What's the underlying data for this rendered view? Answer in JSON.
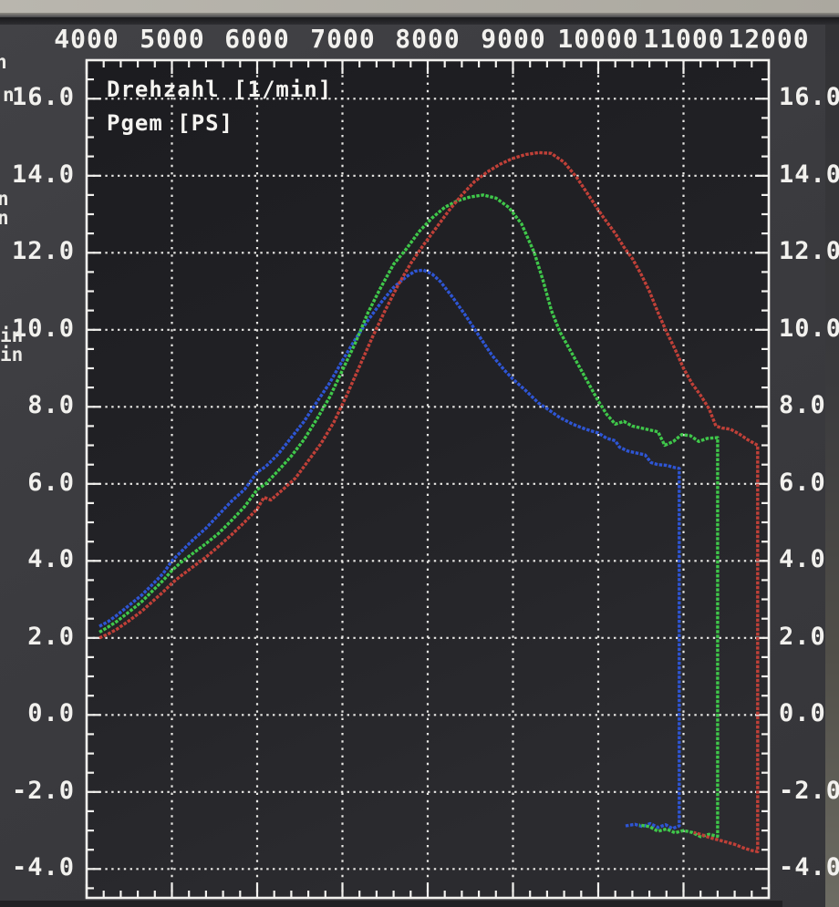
{
  "legend": {
    "line1": "Drehzahl [1/min]",
    "line2": "Pgem [PS]"
  },
  "edge_fragments": [
    "n",
    "n",
    "n",
    "n",
    "in",
    "in"
  ],
  "colors": {
    "screen_bg": "#3b3b3f",
    "plot_bg": "#222226",
    "axis": "#f2f1ee",
    "grid": "#e9e8e5",
    "text": "#f2f1ee",
    "bezel": "#b9b6ae",
    "run_red": "#c04038",
    "run_green": "#3fc74a",
    "run_blue": "#2e55d4"
  },
  "axes": {
    "x_minor_step": 200,
    "x_major_step": 1000,
    "y_minor_step": 0.5,
    "y_major_step": 2,
    "x_ticks": [
      {
        "label": "4000",
        "value": 4000
      },
      {
        "label": "5000",
        "value": 5000
      },
      {
        "label": "6000",
        "value": 6000
      },
      {
        "label": "7000",
        "value": 7000
      },
      {
        "label": "8000",
        "value": 8000
      },
      {
        "label": "9000",
        "value": 9000
      },
      {
        "label": "10000",
        "value": 10000
      },
      {
        "label": "11000",
        "value": 11000
      },
      {
        "label": "12000",
        "value": 12000
      }
    ],
    "y_ticks": [
      {
        "label": "16.0",
        "value": 16
      },
      {
        "label": "14.0",
        "value": 14
      },
      {
        "label": "12.0",
        "value": 12
      },
      {
        "label": "10.0",
        "value": 10
      },
      {
        "label": "8.0",
        "value": 8
      },
      {
        "label": "6.0",
        "value": 6
      },
      {
        "label": "4.0",
        "value": 4
      },
      {
        "label": "2.0",
        "value": 2
      },
      {
        "label": "0.0",
        "value": 0
      },
      {
        "label": "-2.0",
        "value": -2
      },
      {
        "label": "-4.0",
        "value": -4
      }
    ]
  },
  "chart_data": {
    "type": "line",
    "title": "",
    "xlabel": "Drehzahl [1/min]",
    "ylabel": "Pgem [PS]",
    "xlim": [
      4000,
      12000
    ],
    "ylim": [
      -4.75,
      17
    ],
    "grid": true,
    "legend_position": "top-left-inside",
    "series": [
      {
        "name": "run-blue",
        "color": "#2e55d4",
        "peak": {
          "rpm": 7950,
          "ps": 11.55
        },
        "points": [
          [
            4150,
            2.3
          ],
          [
            4250,
            2.42
          ],
          [
            4350,
            2.58
          ],
          [
            4500,
            2.85
          ],
          [
            4650,
            3.12
          ],
          [
            4800,
            3.45
          ],
          [
            4900,
            3.68
          ],
          [
            5000,
            4.0
          ],
          [
            5100,
            4.22
          ],
          [
            5250,
            4.55
          ],
          [
            5400,
            4.85
          ],
          [
            5550,
            5.2
          ],
          [
            5700,
            5.55
          ],
          [
            5850,
            5.85
          ],
          [
            6000,
            6.3
          ],
          [
            6100,
            6.45
          ],
          [
            6250,
            6.78
          ],
          [
            6400,
            7.2
          ],
          [
            6550,
            7.62
          ],
          [
            6700,
            8.12
          ],
          [
            6850,
            8.62
          ],
          [
            7000,
            9.2
          ],
          [
            7150,
            9.75
          ],
          [
            7300,
            10.25
          ],
          [
            7450,
            10.7
          ],
          [
            7600,
            11.1
          ],
          [
            7750,
            11.38
          ],
          [
            7850,
            11.52
          ],
          [
            7950,
            11.55
          ],
          [
            8050,
            11.45
          ],
          [
            8150,
            11.25
          ],
          [
            8300,
            10.82
          ],
          [
            8450,
            10.35
          ],
          [
            8600,
            9.85
          ],
          [
            8750,
            9.35
          ],
          [
            8900,
            8.95
          ],
          [
            9000,
            8.72
          ],
          [
            9150,
            8.42
          ],
          [
            9300,
            8.1
          ],
          [
            9400,
            7.95
          ],
          [
            9550,
            7.72
          ],
          [
            9700,
            7.55
          ],
          [
            9850,
            7.42
          ],
          [
            10000,
            7.32
          ],
          [
            10100,
            7.18
          ],
          [
            10200,
            7.12
          ],
          [
            10250,
            6.95
          ],
          [
            10350,
            6.85
          ],
          [
            10450,
            6.8
          ],
          [
            10550,
            6.75
          ],
          [
            10620,
            6.55
          ],
          [
            10700,
            6.5
          ],
          [
            10800,
            6.48
          ],
          [
            10900,
            6.42
          ],
          [
            10950,
            6.4
          ],
          [
            10950,
            -2.88
          ],
          [
            10870,
            -2.95
          ],
          [
            10790,
            -2.85
          ],
          [
            10700,
            -2.92
          ],
          [
            10610,
            -2.82
          ],
          [
            10520,
            -2.9
          ],
          [
            10430,
            -2.84
          ],
          [
            10320,
            -2.88
          ]
        ]
      },
      {
        "name": "run-green",
        "color": "#3fc74a",
        "peak": {
          "rpm": 8650,
          "ps": 13.5
        },
        "points": [
          [
            4150,
            2.15
          ],
          [
            4250,
            2.28
          ],
          [
            4350,
            2.42
          ],
          [
            4500,
            2.68
          ],
          [
            4650,
            2.95
          ],
          [
            4800,
            3.28
          ],
          [
            4900,
            3.5
          ],
          [
            5000,
            3.75
          ],
          [
            5100,
            3.95
          ],
          [
            5250,
            4.2
          ],
          [
            5400,
            4.45
          ],
          [
            5550,
            4.72
          ],
          [
            5700,
            5.05
          ],
          [
            5850,
            5.4
          ],
          [
            6000,
            5.85
          ],
          [
            6100,
            6.0
          ],
          [
            6250,
            6.35
          ],
          [
            6400,
            6.72
          ],
          [
            6550,
            7.15
          ],
          [
            6700,
            7.68
          ],
          [
            6850,
            8.25
          ],
          [
            7000,
            8.95
          ],
          [
            7150,
            9.65
          ],
          [
            7300,
            10.45
          ],
          [
            7450,
            11.1
          ],
          [
            7600,
            11.7
          ],
          [
            7750,
            12.1
          ],
          [
            7900,
            12.55
          ],
          [
            8050,
            12.9
          ],
          [
            8200,
            13.18
          ],
          [
            8350,
            13.35
          ],
          [
            8500,
            13.45
          ],
          [
            8650,
            13.5
          ],
          [
            8800,
            13.42
          ],
          [
            8950,
            13.18
          ],
          [
            9100,
            12.75
          ],
          [
            9250,
            12.0
          ],
          [
            9350,
            11.3
          ],
          [
            9450,
            10.5
          ],
          [
            9550,
            9.95
          ],
          [
            9700,
            9.35
          ],
          [
            9850,
            8.75
          ],
          [
            10000,
            8.15
          ],
          [
            10100,
            7.8
          ],
          [
            10200,
            7.55
          ],
          [
            10300,
            7.62
          ],
          [
            10400,
            7.5
          ],
          [
            10500,
            7.45
          ],
          [
            10600,
            7.4
          ],
          [
            10700,
            7.35
          ],
          [
            10780,
            7.0
          ],
          [
            10880,
            7.1
          ],
          [
            10980,
            7.28
          ],
          [
            11080,
            7.25
          ],
          [
            11180,
            7.1
          ],
          [
            11280,
            7.18
          ],
          [
            11400,
            7.2
          ],
          [
            11400,
            -3.15
          ],
          [
            11300,
            -3.1
          ],
          [
            11200,
            -3.16
          ],
          [
            11100,
            -3.05
          ],
          [
            11000,
            -3.0
          ],
          [
            10900,
            -3.06
          ],
          [
            10800,
            -2.96
          ],
          [
            10700,
            -3.02
          ],
          [
            10600,
            -2.9
          ],
          [
            10480,
            -2.86
          ]
        ]
      },
      {
        "name": "run-red",
        "color": "#c04038",
        "peak": {
          "rpm": 9300,
          "ps": 14.6
        },
        "points": [
          [
            4150,
            2.0
          ],
          [
            4250,
            2.1
          ],
          [
            4350,
            2.22
          ],
          [
            4500,
            2.45
          ],
          [
            4650,
            2.7
          ],
          [
            4800,
            3.0
          ],
          [
            4900,
            3.2
          ],
          [
            5000,
            3.42
          ],
          [
            5100,
            3.6
          ],
          [
            5250,
            3.85
          ],
          [
            5400,
            4.1
          ],
          [
            5550,
            4.38
          ],
          [
            5700,
            4.68
          ],
          [
            5850,
            5.0
          ],
          [
            6000,
            5.35
          ],
          [
            6080,
            5.65
          ],
          [
            6160,
            5.58
          ],
          [
            6300,
            5.85
          ],
          [
            6450,
            6.15
          ],
          [
            6600,
            6.6
          ],
          [
            6750,
            7.05
          ],
          [
            6900,
            7.6
          ],
          [
            7050,
            8.3
          ],
          [
            7200,
            9.05
          ],
          [
            7350,
            9.8
          ],
          [
            7500,
            10.5
          ],
          [
            7650,
            11.15
          ],
          [
            7800,
            11.72
          ],
          [
            7950,
            12.2
          ],
          [
            8100,
            12.65
          ],
          [
            8250,
            13.1
          ],
          [
            8400,
            13.5
          ],
          [
            8550,
            13.85
          ],
          [
            8700,
            14.1
          ],
          [
            8850,
            14.3
          ],
          [
            9000,
            14.45
          ],
          [
            9150,
            14.55
          ],
          [
            9300,
            14.6
          ],
          [
            9450,
            14.58
          ],
          [
            9600,
            14.35
          ],
          [
            9750,
            13.95
          ],
          [
            9900,
            13.45
          ],
          [
            10050,
            12.95
          ],
          [
            10200,
            12.5
          ],
          [
            10300,
            12.15
          ],
          [
            10400,
            11.85
          ],
          [
            10500,
            11.45
          ],
          [
            10600,
            11.0
          ],
          [
            10700,
            10.45
          ],
          [
            10800,
            9.95
          ],
          [
            10900,
            9.5
          ],
          [
            11000,
            9.0
          ],
          [
            11100,
            8.6
          ],
          [
            11200,
            8.3
          ],
          [
            11300,
            7.95
          ],
          [
            11380,
            7.5
          ],
          [
            11450,
            7.45
          ],
          [
            11550,
            7.42
          ],
          [
            11650,
            7.3
          ],
          [
            11750,
            7.15
          ],
          [
            11870,
            7.0
          ],
          [
            11870,
            -3.55
          ],
          [
            11800,
            -3.52
          ],
          [
            11700,
            -3.45
          ],
          [
            11600,
            -3.36
          ],
          [
            11500,
            -3.3
          ],
          [
            11400,
            -3.24
          ],
          [
            11300,
            -3.18
          ],
          [
            11200,
            -3.1
          ],
          [
            11120,
            -3.05
          ]
        ]
      }
    ]
  }
}
